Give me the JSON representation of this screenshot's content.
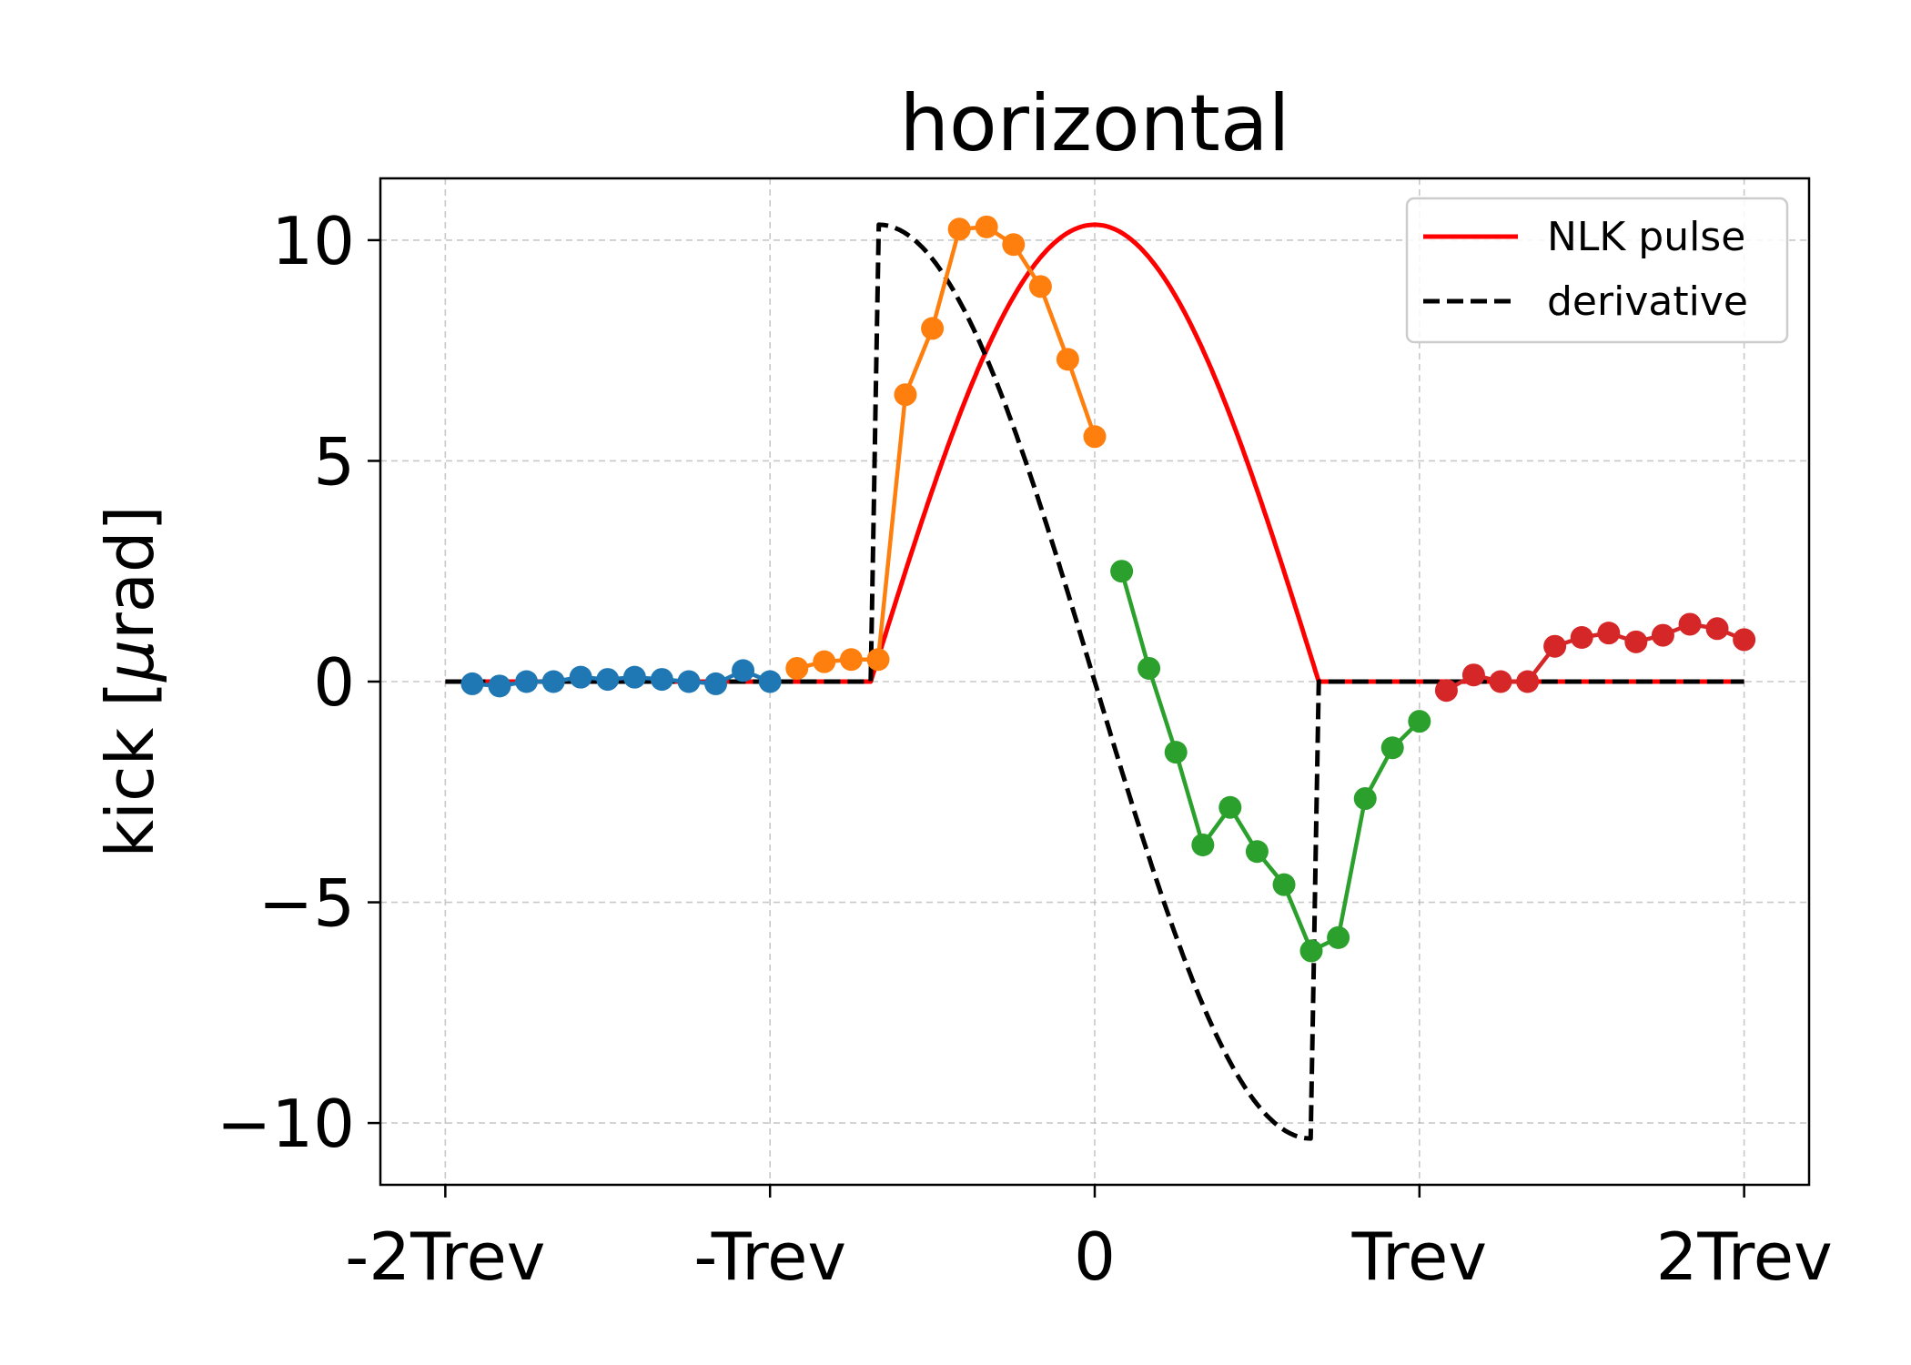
{
  "chart_data": {
    "type": "line",
    "title": "horizontal",
    "ylabel_prefix": "kick [",
    "ylabel_mu": "μ",
    "ylabel_suffix": "rad]",
    "xlim": [
      -2.2,
      2.2
    ],
    "ylim": [
      -11.4,
      11.4
    ],
    "grid": true,
    "legend_placement": "top-right",
    "x_ticks": [
      {
        "value": -2,
        "label": "-2Trev"
      },
      {
        "value": -1,
        "label": "-Trev"
      },
      {
        "value": 0,
        "label": "0"
      },
      {
        "value": 1,
        "label": "Trev"
      },
      {
        "value": 2,
        "label": "2Trev"
      }
    ],
    "y_ticks": [
      {
        "value": 10,
        "label": "10"
      },
      {
        "value": 5,
        "label": "5"
      },
      {
        "value": 0,
        "label": "0"
      },
      {
        "value": -5,
        "label": "−5"
      },
      {
        "value": -10,
        "label": "−10"
      }
    ],
    "pulse": {
      "name": "NLK pulse",
      "color": "#ff0000",
      "amplitude": 10.35,
      "start": -0.69,
      "end": 0.69,
      "x_range": [
        -2,
        2
      ]
    },
    "derivative": {
      "name": "derivative",
      "color": "#000000",
      "style": "dashed",
      "amplitude": 10.35,
      "rise": [
        -0.69,
        -0.665
      ],
      "fall": [
        0.665,
        0.69
      ],
      "x_range": [
        -2,
        2
      ]
    },
    "marker_series": [
      {
        "color": "#1f77b4",
        "x": [
          -1.917,
          -1.833,
          -1.75,
          -1.667,
          -1.583,
          -1.5,
          -1.417,
          -1.333,
          -1.25,
          -1.167,
          -1.083,
          -1.0
        ],
        "y": [
          -0.05,
          -0.1,
          0.0,
          0.0,
          0.1,
          0.05,
          0.1,
          0.05,
          0.0,
          -0.05,
          0.25,
          0.0
        ]
      },
      {
        "color": "#ff7f0e",
        "x": [
          -0.917,
          -0.833,
          -0.75,
          -0.667,
          -0.583,
          -0.5,
          -0.417,
          -0.333,
          -0.25,
          -0.167,
          -0.083,
          0.0
        ],
        "y": [
          0.3,
          0.45,
          0.5,
          0.5,
          6.5,
          8.0,
          10.25,
          10.3,
          9.9,
          8.95,
          7.3,
          5.55
        ]
      },
      {
        "color": "#2ca02c",
        "x": [
          0.083,
          0.167,
          0.25,
          0.333,
          0.417,
          0.5,
          0.583,
          0.667,
          0.75,
          0.833,
          0.917,
          1.0
        ],
        "y": [
          2.5,
          0.3,
          -1.6,
          -3.7,
          -2.85,
          -3.85,
          -4.6,
          -6.1,
          -5.8,
          -2.65,
          -1.5,
          -0.9
        ]
      },
      {
        "color": "#d62728",
        "x": [
          1.083,
          1.167,
          1.25,
          1.333,
          1.417,
          1.5,
          1.583,
          1.667,
          1.75,
          1.833,
          1.917,
          2.0
        ],
        "y": [
          -0.2,
          0.15,
          0.0,
          0.0,
          0.8,
          1.0,
          1.1,
          0.9,
          1.05,
          1.3,
          1.2,
          0.95
        ]
      }
    ]
  }
}
